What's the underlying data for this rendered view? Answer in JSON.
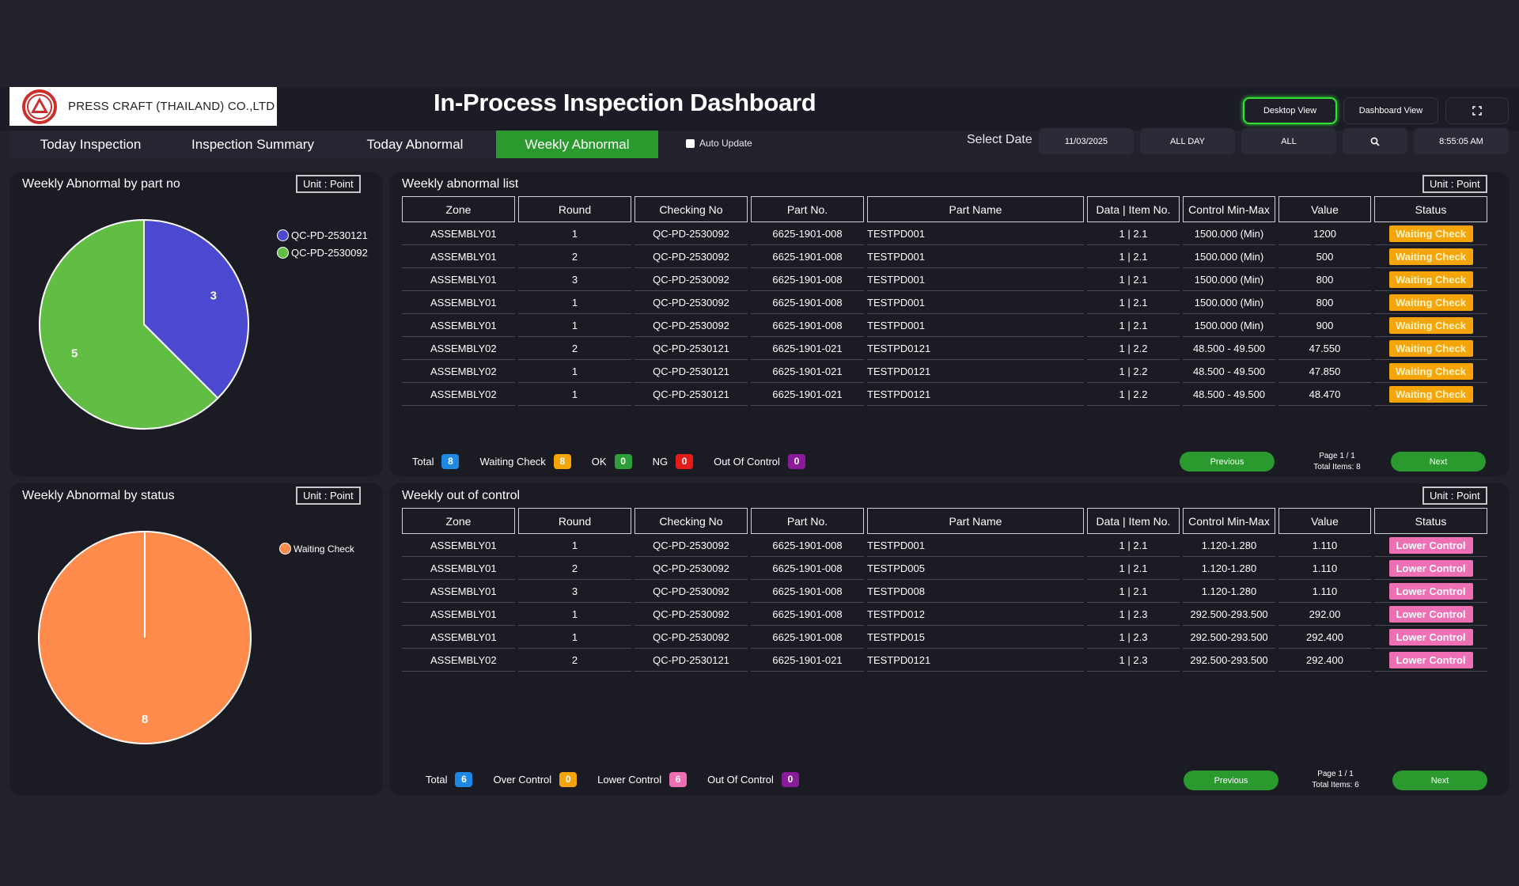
{
  "company": {
    "name": "PRESS CRAFT (THAILAND) CO.,LTD"
  },
  "title": "In-Process Inspection Dashboard",
  "view_buttons": {
    "desktop": "Desktop View",
    "dashboard": "Dashboard View",
    "fullscreen_icon": "expand-icon"
  },
  "tabs": [
    {
      "label": "Today Inspection",
      "active": false
    },
    {
      "label": "Inspection Summary",
      "active": false
    },
    {
      "label": "Today Abnormal",
      "active": false
    },
    {
      "label": "Weekly Abnormal",
      "active": true
    }
  ],
  "auto_update": {
    "label": "Auto Update",
    "checked": false
  },
  "filters": {
    "select_date_label": "Select Date",
    "date": "11/03/2025",
    "period": "ALL DAY",
    "scope": "ALL",
    "search_icon": "search-icon",
    "time": "8:55:05 AM"
  },
  "unit_label": "Unit : Point",
  "chart_part": {
    "title": "Weekly Abnormal by part no",
    "chart_data": {
      "type": "pie",
      "labels": [
        "QC-PD-2530121",
        "QC-PD-2530092"
      ],
      "values": [
        3,
        5
      ],
      "colors": [
        "#4b49cf",
        "#62bd45"
      ],
      "legend": "right"
    }
  },
  "chart_status": {
    "title": "Weekly Abnormal by status",
    "chart_data": {
      "type": "pie",
      "labels": [
        "Waiting Check"
      ],
      "values": [
        8
      ],
      "colors": [
        "#ff8c4c"
      ],
      "legend": "right"
    }
  },
  "columns": [
    "Zone",
    "Round",
    "Checking No",
    "Part No.",
    "Part Name",
    "Data | Item No.",
    "Control Min-Max",
    "Value",
    "Status"
  ],
  "abnormal_list": {
    "title": "Weekly abnormal list",
    "rows": [
      [
        "ASSEMBLY01",
        "1",
        "QC-PD-2530092",
        "6625-1901-008",
        "TESTPD001",
        "1 | 2.1",
        "1500.000 (Min)",
        "1200",
        "Waiting Check"
      ],
      [
        "ASSEMBLY01",
        "2",
        "QC-PD-2530092",
        "6625-1901-008",
        "TESTPD001",
        "1 | 2.1",
        "1500.000 (Min)",
        "500",
        "Waiting Check"
      ],
      [
        "ASSEMBLY01",
        "3",
        "QC-PD-2530092",
        "6625-1901-008",
        "TESTPD001",
        "1 | 2.1",
        "1500.000 (Min)",
        "800",
        "Waiting Check"
      ],
      [
        "ASSEMBLY01",
        "1",
        "QC-PD-2530092",
        "6625-1901-008",
        "TESTPD001",
        "1 | 2.1",
        "1500.000 (Min)",
        "800",
        "Waiting Check"
      ],
      [
        "ASSEMBLY01",
        "1",
        "QC-PD-2530092",
        "6625-1901-008",
        "TESTPD001",
        "1 | 2.1",
        "1500.000 (Min)",
        "900",
        "Waiting Check"
      ],
      [
        "ASSEMBLY02",
        "2",
        "QC-PD-2530121",
        "6625-1901-021",
        "TESTPD0121",
        "1 | 2.2",
        "48.500 - 49.500",
        "47.550",
        "Waiting Check"
      ],
      [
        "ASSEMBLY02",
        "1",
        "QC-PD-2530121",
        "6625-1901-021",
        "TESTPD0121",
        "1 | 2.2",
        "48.500 - 49.500",
        "47.850",
        "Waiting Check"
      ],
      [
        "ASSEMBLY02",
        "1",
        "QC-PD-2530121",
        "6625-1901-021",
        "TESTPD0121",
        "1 | 2.2",
        "48.500 - 49.500",
        "48.470",
        "Waiting Check"
      ]
    ],
    "summary": [
      {
        "label": "Total",
        "value": "8",
        "color": "#1e88e5"
      },
      {
        "label": "Waiting Check",
        "value": "8",
        "color": "#f5a40a"
      },
      {
        "label": "OK",
        "value": "0",
        "color": "#2e9e3a"
      },
      {
        "label": "NG",
        "value": "0",
        "color": "#e51c1c"
      },
      {
        "label": "Out Of Control",
        "value": "0",
        "color": "#8a1b9a"
      }
    ],
    "pager": {
      "previous": "Previous",
      "next": "Next",
      "page": "Page 1 / 1",
      "total_items": "Total Items: 8"
    }
  },
  "out_of_control": {
    "title": "Weekly out of control",
    "rows": [
      [
        "ASSEMBLY01",
        "1",
        "QC-PD-2530092",
        "6625-1901-008",
        "TESTPD001",
        "1 | 2.1",
        "1.120-1.280",
        "1.110",
        "Lower Control"
      ],
      [
        "ASSEMBLY01",
        "2",
        "QC-PD-2530092",
        "6625-1901-008",
        "TESTPD005",
        "1 | 2.1",
        "1.120-1.280",
        "1.110",
        "Lower Control"
      ],
      [
        "ASSEMBLY01",
        "3",
        "QC-PD-2530092",
        "6625-1901-008",
        "TESTPD008",
        "1 | 2.1",
        "1.120-1.280",
        "1.110",
        "Lower Control"
      ],
      [
        "ASSEMBLY01",
        "1",
        "QC-PD-2530092",
        "6625-1901-008",
        "TESTPD012",
        "1 | 2.3",
        "292.500-293.500",
        "292.00",
        "Lower Control"
      ],
      [
        "ASSEMBLY01",
        "1",
        "QC-PD-2530092",
        "6625-1901-008",
        "TESTPD015",
        "1 | 2.3",
        "292.500-293.500",
        "292.400",
        "Lower Control"
      ],
      [
        "ASSEMBLY02",
        "2",
        "QC-PD-2530121",
        "6625-1901-021",
        "TESTPD0121",
        "1 | 2.3",
        "292.500-293.500",
        "292.400",
        "Lower Control"
      ]
    ],
    "summary": [
      {
        "label": "Total",
        "value": "6",
        "color": "#1e88e5"
      },
      {
        "label": "Over Control",
        "value": "0",
        "color": "#f5a40a"
      },
      {
        "label": "Lower Control",
        "value": "6",
        "color": "#ee6fb3"
      },
      {
        "label": "Out Of Control",
        "value": "0",
        "color": "#8a1b9a"
      }
    ],
    "pager": {
      "previous": "Previous",
      "next": "Next",
      "page": "Page 1 / 1",
      "total_items": "Total Items: 6"
    }
  }
}
